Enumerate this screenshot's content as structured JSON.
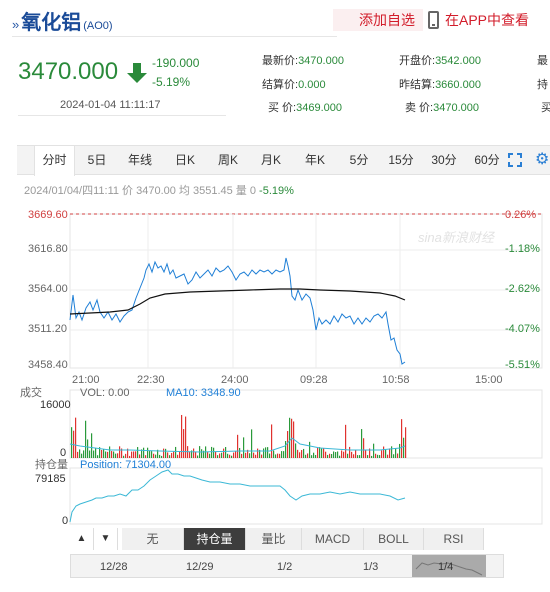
{
  "header": {
    "title": "氧化铝",
    "code": "(AO0)",
    "add_watchlist": "添加自选",
    "view_in_app": "在APP中查看"
  },
  "quote": {
    "price": "3470.000",
    "change": "-190.000",
    "change_pct": "-5.19%",
    "timestamp": "2024-01-04  11:11:17",
    "fields": [
      {
        "label": "最新价:",
        "value": "3470.000"
      },
      {
        "label": "开盘价:",
        "value": "3542.000"
      },
      {
        "label": "最",
        "value": ""
      },
      {
        "label": "结算价:",
        "value": "0.000"
      },
      {
        "label": "昨结算:",
        "value": "3660.000"
      },
      {
        "label": "持",
        "value": ""
      },
      {
        "label": "买   价:",
        "value": "3469.000"
      },
      {
        "label": "卖   价:",
        "value": "3470.000"
      },
      {
        "label": "买",
        "value": ""
      }
    ]
  },
  "tabs": [
    "分时",
    "5日",
    "年线",
    "日K",
    "周K",
    "月K",
    "年K",
    "5分",
    "15分",
    "30分",
    "60分"
  ],
  "quote_line": {
    "prefix": "2024/01/04/四11:11  价 3470.00  均 3551.45  量 0",
    "pct": "-5.19%"
  },
  "chart": {
    "watermark": "sina新浪财经",
    "price_axis": [
      "3669.60",
      "3616.80",
      "3564.00",
      "3511.20",
      "3458.40"
    ],
    "pct_axis": [
      "0.26%",
      "-1.18%",
      "-2.62%",
      "-4.07%",
      "-5.51%"
    ],
    "time_axis": [
      "21:00",
      "22:30",
      "24:00",
      "09:28",
      "10:58",
      "15:00"
    ],
    "volume_title": "成交",
    "volume_label": "VOL: 0.00",
    "volume_ma": "MA10: 3348.90",
    "volume_max": "16000",
    "volume_min": "0",
    "oi_title": "持仓量",
    "oi_label": "Position: 71304.00",
    "oi_max": "79185",
    "oi_min": "0",
    "colors": {
      "price": "#1f7fd6",
      "avg": "#111111",
      "up": "#e0322f",
      "down": "#2a9a3a",
      "oi": "#3bb8d6"
    }
  },
  "bottom_tabs": [
    "▲",
    "▼",
    "无",
    "持仓量",
    "量比",
    "MACD",
    "BOLL",
    "RSI"
  ],
  "nav_dates": [
    "12/28",
    "12/29",
    "1/2",
    "1/3",
    "1/4"
  ]
}
